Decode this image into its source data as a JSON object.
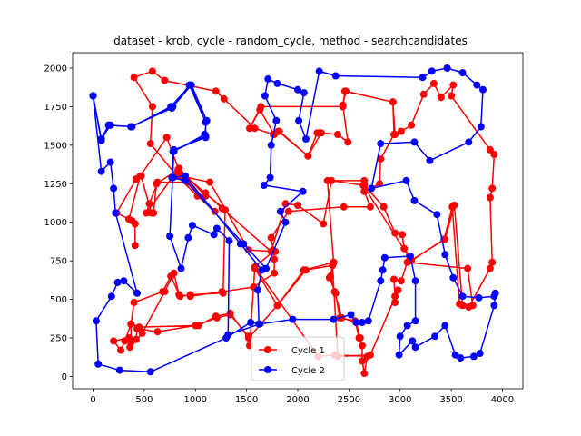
{
  "chart_data": {
    "type": "line",
    "title": "dataset - krob, cycle - random_cycle, method - searchcandidates",
    "xlabel": "",
    "ylabel": "",
    "xlim": [
      -200,
      4200
    ],
    "ylim": [
      -80,
      2100
    ],
    "x_ticks": [
      0,
      500,
      1000,
      1500,
      2000,
      2500,
      3000,
      3500,
      4000
    ],
    "y_ticks": [
      0,
      250,
      500,
      750,
      1000,
      1250,
      1500,
      1750,
      2000
    ],
    "x_tick_labels": [
      "0",
      "500",
      "1000",
      "1500",
      "2000",
      "2500",
      "3000",
      "3500",
      "4000"
    ],
    "y_tick_labels": [
      "0",
      "250",
      "500",
      "750",
      "1000",
      "1250",
      "1500",
      "1750",
      "2000"
    ],
    "grid": false,
    "legend_position": "lower-center",
    "series": [
      {
        "name": "Cycle 1",
        "color": "#ff0000",
        "marker": "circle",
        "points": [
          [
            2220,
            1580
          ],
          [
            2190,
            1580
          ],
          [
            2100,
            1430
          ],
          [
            1810,
            1590
          ],
          [
            1770,
            1570
          ],
          [
            1630,
            1730
          ],
          [
            1530,
            1610
          ],
          [
            1640,
            1750
          ],
          [
            2440,
            1750
          ],
          [
            2460,
            1850
          ],
          [
            2930,
            1780
          ],
          [
            2950,
            1570
          ],
          [
            3010,
            1590
          ],
          [
            3110,
            1630
          ],
          [
            3230,
            1830
          ],
          [
            3330,
            1900
          ],
          [
            3400,
            1810
          ],
          [
            3520,
            1890
          ],
          [
            3500,
            1820
          ],
          [
            3880,
            1470
          ],
          [
            3920,
            1440
          ],
          [
            3900,
            1220
          ],
          [
            3880,
            1160
          ],
          [
            3900,
            740
          ],
          [
            3880,
            700
          ],
          [
            3670,
            450
          ],
          [
            3610,
            460
          ],
          [
            3530,
            1110
          ],
          [
            3440,
            890
          ],
          [
            3100,
            750
          ],
          [
            3090,
            780
          ],
          [
            3040,
            830
          ],
          [
            3020,
            920
          ],
          [
            2950,
            930
          ],
          [
            2840,
            1100
          ],
          [
            2650,
            1240
          ],
          [
            2650,
            1270
          ],
          [
            2290,
            1270
          ],
          [
            2350,
            740
          ],
          [
            2320,
            650
          ],
          [
            2360,
            550
          ],
          [
            2430,
            380
          ],
          [
            2570,
            350
          ],
          [
            2610,
            250
          ],
          [
            2630,
            200
          ],
          [
            2630,
            100
          ],
          [
            2650,
            20
          ],
          [
            2680,
            130
          ],
          [
            2360,
            140
          ],
          [
            2200,
            130
          ],
          [
            1580,
            710
          ],
          [
            1760,
            810
          ],
          [
            1770,
            760
          ],
          [
            1770,
            670
          ],
          [
            1570,
            580
          ],
          [
            1260,
            550
          ],
          [
            950,
            520
          ],
          [
            840,
            530
          ],
          [
            790,
            670
          ],
          [
            700,
            550
          ],
          [
            480,
            280
          ],
          [
            360,
            190
          ],
          [
            370,
            220
          ],
          [
            370,
            340
          ],
          [
            450,
            320
          ],
          [
            1030,
            330
          ],
          [
            1200,
            390
          ],
          [
            1340,
            410
          ],
          [
            1520,
            250
          ],
          [
            1800,
            460
          ],
          [
            2080,
            690
          ],
          [
            2340,
            720
          ],
          [
            2390,
            130
          ],
          [
            2710,
            140
          ],
          [
            2980,
            560
          ],
          [
            2950,
            480
          ],
          [
            2950,
            520
          ],
          [
            2940,
            630
          ],
          [
            3010,
            620
          ],
          [
            3070,
            740
          ],
          [
            3660,
            700
          ],
          [
            3710,
            460
          ],
          [
            3580,
            470
          ],
          [
            3510,
            1100
          ],
          [
            3430,
            890
          ],
          [
            3110,
            750
          ],
          [
            2640,
            1240
          ],
          [
            2330,
            1270
          ],
          [
            2250,
            990
          ],
          [
            2000,
            1110
          ],
          [
            1880,
            1120
          ],
          [
            1740,
            810
          ],
          [
            1260,
            1090
          ],
          [
            1100,
            1190
          ],
          [
            1100,
            1170
          ],
          [
            840,
            1350
          ],
          [
            520,
            1060
          ],
          [
            550,
            1120
          ],
          [
            630,
            1260
          ],
          [
            930,
            1260
          ],
          [
            1190,
            1070
          ],
          [
            1020,
            1170
          ],
          [
            820,
            1300
          ],
          [
            560,
            1510
          ],
          [
            580,
            1750
          ],
          [
            400,
            1940
          ],
          [
            580,
            1980
          ],
          [
            700,
            1920
          ],
          [
            1200,
            1850
          ],
          [
            1280,
            1800
          ],
          [
            1580,
            1610
          ],
          [
            1760,
            1570
          ],
          [
            1820,
            1590
          ],
          [
            2100,
            1430
          ],
          [
            2230,
            1580
          ],
          [
            2390,
            1570
          ],
          [
            2490,
            1520
          ],
          [
            2440,
            1760
          ],
          [
            2470,
            1850
          ],
          [
            2930,
            1780
          ],
          [
            2940,
            1570
          ],
          [
            2810,
            1410
          ],
          [
            2800,
            1250
          ],
          [
            2650,
            1200
          ],
          [
            2710,
            1100
          ],
          [
            2450,
            1100
          ],
          [
            1910,
            1070
          ],
          [
            1740,
            900
          ],
          [
            1760,
            820
          ],
          [
            1780,
            810
          ],
          [
            1520,
            820
          ],
          [
            1140,
            1260
          ],
          [
            860,
            1300
          ],
          [
            720,
            1550
          ],
          [
            460,
            1300
          ],
          [
            350,
            1020
          ],
          [
            410,
            990
          ],
          [
            410,
            850
          ],
          [
            410,
            990
          ],
          [
            380,
            1010
          ],
          [
            230,
            1060
          ],
          [
            420,
            1280
          ],
          [
            470,
            1300
          ],
          [
            570,
            1060
          ],
          [
            590,
            1060
          ],
          [
            620,
            1250
          ],
          [
            830,
            1340
          ],
          [
            1290,
            1080
          ],
          [
            1270,
            540
          ],
          [
            950,
            530
          ],
          [
            850,
            520
          ],
          [
            760,
            650
          ],
          [
            680,
            550
          ],
          [
            400,
            480
          ],
          [
            370,
            340
          ],
          [
            310,
            230
          ],
          [
            270,
            170
          ],
          [
            200,
            230
          ],
          [
            350,
            250
          ],
          [
            420,
            240
          ],
          [
            430,
            310
          ],
          [
            630,
            290
          ],
          [
            1000,
            330
          ],
          [
            1210,
            380
          ],
          [
            1340,
            400
          ],
          [
            1520,
            260
          ],
          [
            1530,
            200
          ],
          [
            1580,
            700
          ],
          [
            1800,
            460
          ],
          [
            2060,
            690
          ],
          [
            2350,
            740
          ],
          [
            2310,
            640
          ],
          [
            2370,
            540
          ],
          [
            2410,
            380
          ],
          [
            2560,
            360
          ],
          [
            2600,
            250
          ]
        ]
      },
      {
        "name": "Cycle 2",
        "color": "#0000ff",
        "marker": "circle",
        "points": [
          [
            0,
            1820
          ],
          [
            80,
            1530
          ],
          [
            160,
            1630
          ],
          [
            380,
            1620
          ],
          [
            760,
            1750
          ],
          [
            950,
            1890
          ],
          [
            1100,
            1650
          ],
          [
            1100,
            1560
          ],
          [
            780,
            1460
          ],
          [
            780,
            1290
          ],
          [
            900,
            1300
          ],
          [
            1440,
            860
          ],
          [
            1650,
            690
          ],
          [
            1610,
            560
          ],
          [
            1620,
            340
          ],
          [
            1540,
            350
          ],
          [
            1300,
            250
          ],
          [
            560,
            30
          ],
          [
            260,
            40
          ],
          [
            50,
            80
          ],
          [
            30,
            360
          ],
          [
            180,
            520
          ],
          [
            240,
            610
          ],
          [
            300,
            620
          ],
          [
            430,
            540
          ],
          [
            220,
            1060
          ],
          [
            200,
            1220
          ],
          [
            170,
            1390
          ],
          [
            80,
            1330
          ],
          [
            0,
            1820
          ],
          [
            80,
            1540
          ],
          [
            150,
            1630
          ],
          [
            370,
            1620
          ],
          [
            780,
            1750
          ],
          [
            960,
            1890
          ],
          [
            1110,
            1660
          ],
          [
            1090,
            1570
          ],
          [
            790,
            1460
          ],
          [
            770,
            1290
          ],
          [
            900,
            1270
          ],
          [
            1470,
            860
          ],
          [
            1690,
            700
          ],
          [
            1880,
            1000
          ],
          [
            1830,
            1070
          ],
          [
            2050,
            1200
          ],
          [
            1670,
            1240
          ],
          [
            1730,
            1290
          ],
          [
            1740,
            1500
          ],
          [
            1790,
            1660
          ],
          [
            1680,
            1820
          ],
          [
            1710,
            1930
          ],
          [
            1800,
            1900
          ],
          [
            2000,
            1860
          ],
          [
            2060,
            1840
          ],
          [
            2010,
            1660
          ],
          [
            2080,
            1540
          ],
          [
            2210,
            1980
          ],
          [
            2370,
            1950
          ],
          [
            3220,
            1940
          ],
          [
            3310,
            1980
          ],
          [
            3460,
            2000
          ],
          [
            3610,
            1970
          ],
          [
            3750,
            1890
          ],
          [
            3810,
            1860
          ],
          [
            3790,
            1620
          ],
          [
            3670,
            1520
          ],
          [
            3290,
            1400
          ],
          [
            3140,
            1520
          ],
          [
            2810,
            1510
          ],
          [
            2720,
            1220
          ],
          [
            3060,
            1270
          ],
          [
            3140,
            1140
          ],
          [
            3360,
            1050
          ],
          [
            3440,
            790
          ],
          [
            3520,
            640
          ],
          [
            3610,
            520
          ],
          [
            3770,
            510
          ],
          [
            3920,
            520
          ],
          [
            3930,
            540
          ],
          [
            3920,
            460
          ],
          [
            3780,
            150
          ],
          [
            3720,
            130
          ],
          [
            3590,
            120
          ],
          [
            3540,
            140
          ],
          [
            3440,
            330
          ],
          [
            3340,
            260
          ],
          [
            3150,
            190
          ],
          [
            3120,
            230
          ],
          [
            2990,
            140
          ],
          [
            3000,
            260
          ],
          [
            3070,
            330
          ],
          [
            3150,
            360
          ],
          [
            3150,
            620
          ],
          [
            3100,
            780
          ],
          [
            2850,
            770
          ],
          [
            2830,
            690
          ],
          [
            2810,
            620
          ],
          [
            2690,
            360
          ],
          [
            2630,
            350
          ],
          [
            2570,
            350
          ],
          [
            2520,
            400
          ],
          [
            2350,
            370
          ],
          [
            1950,
            370
          ],
          [
            1630,
            340
          ],
          [
            1320,
            270
          ],
          [
            1330,
            880
          ],
          [
            1210,
            960
          ],
          [
            1180,
            920
          ],
          [
            970,
            980
          ],
          [
            930,
            900
          ],
          [
            860,
            700
          ],
          [
            750,
            910
          ],
          [
            790,
            1470
          ],
          [
            1100,
            1550
          ],
          [
            1100,
            1650
          ],
          [
            940,
            1890
          ],
          [
            770,
            1740
          ],
          [
            370,
            1620
          ],
          [
            170,
            1630
          ],
          [
            80,
            1540
          ],
          [
            0,
            1820
          ]
        ]
      }
    ]
  }
}
